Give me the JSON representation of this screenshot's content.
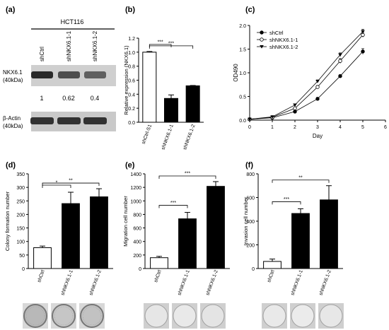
{
  "panels": {
    "a": {
      "label": "(a)"
    },
    "b": {
      "label": "(b)"
    },
    "c": {
      "label": "(c)"
    },
    "d": {
      "label": "(d)"
    },
    "e": {
      "label": "(e)"
    },
    "f": {
      "label": "(f)"
    }
  },
  "blot": {
    "cell_line": "HCT116",
    "lanes": [
      "shCtrl",
      "shNKX6.1-1",
      "shNKX6.1-2"
    ],
    "protein_label_1": "NKX6.1",
    "protein_weight_1": "(40kDa)",
    "protein_label_2": "β-Actin",
    "protein_weight_2": "(40kDa)",
    "quantification": [
      "1",
      "0.62",
      "0.4"
    ],
    "quantification_values": [
      1,
      0.62,
      0.4
    ],
    "band_color": "#2a2a2a",
    "background_color": "#c8c8c8"
  },
  "chart_data": [
    {
      "panel": "b",
      "type": "bar",
      "categories": [
        "shCtrl-S1",
        "shNKX6.1-1",
        "shNKX6.1-2"
      ],
      "values": [
        1.0,
        0.34,
        0.52
      ],
      "errors": [
        0.01,
        0.05,
        0.005
      ],
      "fills": [
        "#ffffff",
        "#000000",
        "#000000"
      ],
      "ylabel": "Relative expression (NKX6.1)",
      "ylim": [
        0,
        1.2
      ],
      "yticks": [
        "0.0",
        "0.2",
        "0.4",
        "0.6",
        "0.8",
        "1.0",
        "1.2"
      ],
      "significance": [
        {
          "from": 0,
          "to": 1,
          "label": "***"
        },
        {
          "from": 0,
          "to": 2,
          "label": "***"
        }
      ]
    },
    {
      "panel": "c",
      "type": "line",
      "x": [
        0,
        1,
        2,
        3,
        4,
        5
      ],
      "xlim": [
        0,
        6
      ],
      "xticks": [
        "0",
        "1",
        "2",
        "3",
        "4",
        "5",
        "6"
      ],
      "xlabel": "Day",
      "ylabel": "OD490",
      "ylim": [
        0,
        2.0
      ],
      "yticks": [
        "0.0",
        "0.5",
        "1.0",
        "1.5",
        "2.0"
      ],
      "legend_position": "top-left",
      "series": [
        {
          "name": "shCtrl",
          "values": [
            0.02,
            0.05,
            0.18,
            0.45,
            0.93,
            1.45
          ],
          "errors": [
            0,
            0.01,
            0.02,
            0.03,
            0.03,
            0.06
          ],
          "marker": "circle-filled"
        },
        {
          "name": "shNKX6.1-1",
          "values": [
            0.02,
            0.06,
            0.25,
            0.7,
            1.25,
            1.8
          ],
          "errors": [
            0,
            0.01,
            0.02,
            0.03,
            0.05,
            0.05
          ],
          "marker": "circle-open"
        },
        {
          "name": "shNKX6.1-2",
          "values": [
            0.02,
            0.07,
            0.32,
            0.82,
            1.38,
            1.87
          ],
          "errors": [
            0,
            0.01,
            0.02,
            0.03,
            0.04,
            0.05
          ],
          "marker": "triangle-down"
        }
      ]
    },
    {
      "panel": "d",
      "type": "bar",
      "categories": [
        "shCtrl",
        "shNKX6.1-1",
        "shNKX6.1-2"
      ],
      "values": [
        77,
        240,
        265
      ],
      "errors": [
        6,
        42,
        30
      ],
      "fills": [
        "#ffffff",
        "#000000",
        "#000000"
      ],
      "ylabel": "Colony formation number",
      "ylim": [
        0,
        350
      ],
      "yticks": [
        "0",
        "50",
        "100",
        "150",
        "200",
        "250",
        "300",
        "350"
      ],
      "significance": [
        {
          "from": 0,
          "to": 1,
          "label": "*"
        },
        {
          "from": 0,
          "to": 2,
          "label": "**"
        }
      ]
    },
    {
      "panel": "e",
      "type": "bar",
      "categories": [
        "shCtrl",
        "shNKX6.1-1",
        "shNKX6.1-2"
      ],
      "values": [
        160,
        735,
        1215
      ],
      "errors": [
        20,
        95,
        70
      ],
      "fills": [
        "#ffffff",
        "#000000",
        "#000000"
      ],
      "ylabel": "Migration cell number",
      "ylim": [
        0,
        1400
      ],
      "yticks": [
        "0",
        "200",
        "400",
        "600",
        "800",
        "1000",
        "1200",
        "1400"
      ],
      "significance": [
        {
          "from": 0,
          "to": 1,
          "label": "***"
        },
        {
          "from": 0,
          "to": 2,
          "label": "***"
        }
      ]
    },
    {
      "panel": "f",
      "type": "bar",
      "categories": [
        "shCtrl",
        "shNKX6.1-1",
        "shNKX6.1-2"
      ],
      "values": [
        60,
        465,
        580
      ],
      "errors": [
        20,
        40,
        120
      ],
      "fills": [
        "#ffffff",
        "#000000",
        "#000000"
      ],
      "ylabel": "Invasion cell number",
      "ylim": [
        0,
        800
      ],
      "yticks": [
        "0",
        "200",
        "400",
        "600",
        "800"
      ],
      "significance": [
        {
          "from": 0,
          "to": 1,
          "label": "***"
        },
        {
          "from": 0,
          "to": 2,
          "label": "**"
        }
      ]
    }
  ],
  "well_images": {
    "d": {
      "style": "colony",
      "fills": [
        "#b8b8b8",
        "#c6c6c6",
        "#c2c2c2"
      ]
    },
    "e": {
      "style": "well",
      "fills": [
        "#e6e6e6",
        "#e9e9e9",
        "#e4e4e4"
      ]
    },
    "f": {
      "style": "well",
      "fills": [
        "#e9e9e9",
        "#ebebeb",
        "#e7e7e7"
      ]
    }
  }
}
